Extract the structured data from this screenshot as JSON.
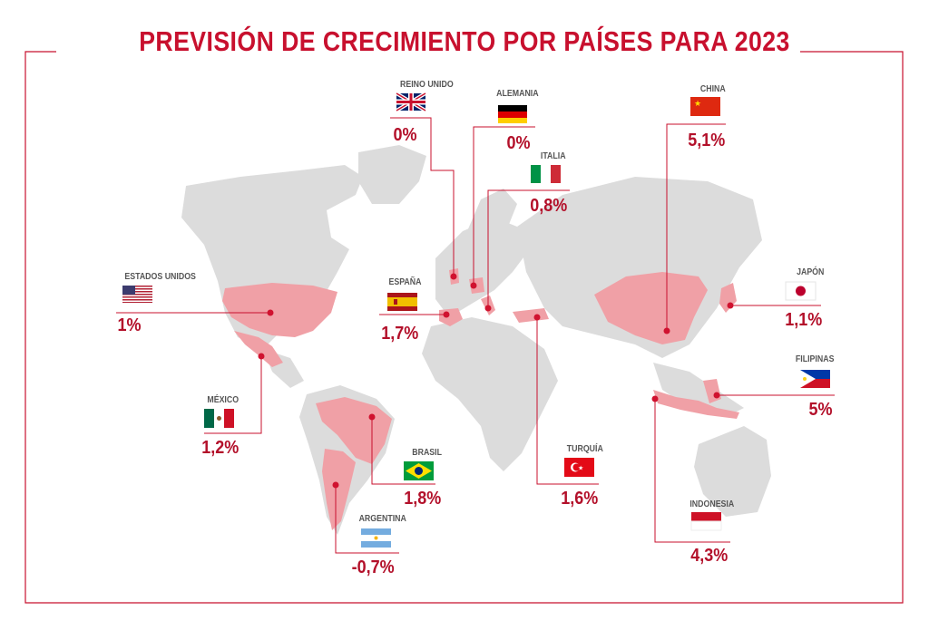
{
  "title": "PREVISIÓN DE CRECIMIENTO POR PAÍSES PARA 2023",
  "colors": {
    "accent": "#c8102e",
    "highlight": "#f0a0a6",
    "land": "#dcdcdc",
    "dot": "#d0122f"
  },
  "countries": {
    "reino_unido": {
      "name": "REINO UNIDO",
      "value": "0%"
    },
    "alemania": {
      "name": "ALEMANIA",
      "value": "0%"
    },
    "china": {
      "name": "CHINA",
      "value": "5,1%"
    },
    "italia": {
      "name": "ITALIA",
      "value": "0,8%"
    },
    "estados_unidos": {
      "name": "ESTADOS UNIDOS",
      "value": "1%"
    },
    "espana": {
      "name": "ESPAÑA",
      "value": "1,7%"
    },
    "japon": {
      "name": "JAPÓN",
      "value": "1,1%"
    },
    "mexico": {
      "name": "MÉXICO",
      "value": "1,2%"
    },
    "filipinas": {
      "name": "FILIPINAS",
      "value": "5%"
    },
    "brasil": {
      "name": "BRASIL",
      "value": "1,8%"
    },
    "turquia": {
      "name": "TURQUÍA",
      "value": "1,6%"
    },
    "indonesia": {
      "name": "INDONESIA",
      "value": "4,3%"
    },
    "argentina": {
      "name": "ARGENTINA",
      "value": "-0,7%"
    }
  }
}
